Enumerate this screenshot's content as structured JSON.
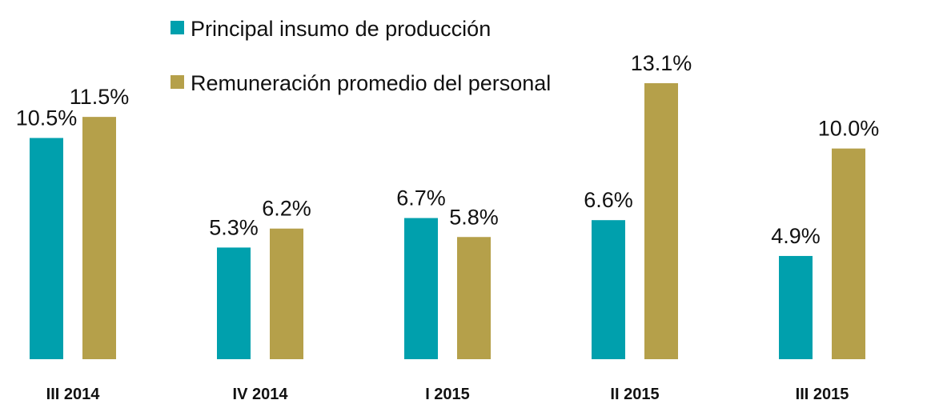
{
  "chart_data": {
    "type": "bar",
    "categories": [
      "III 2014",
      "IV 2014",
      "I 2015",
      "II 2015",
      "III 2015"
    ],
    "series": [
      {
        "name": "Principal insumo de producción",
        "color": "#00a0ad",
        "values": [
          10.5,
          5.3,
          6.7,
          6.6,
          4.9
        ],
        "value_labels": [
          "10.5%",
          "5.3%",
          "6.7%",
          "6.6%",
          "4.9%"
        ]
      },
      {
        "name": "Remuneración promedio del personal",
        "color": "#b5a04a",
        "values": [
          11.5,
          6.2,
          5.8,
          13.1,
          10.0
        ],
        "value_labels": [
          "11.5%",
          "6.2%",
          "5.8%",
          "13.1%",
          "10.0%"
        ]
      }
    ],
    "legend": "top"
  }
}
